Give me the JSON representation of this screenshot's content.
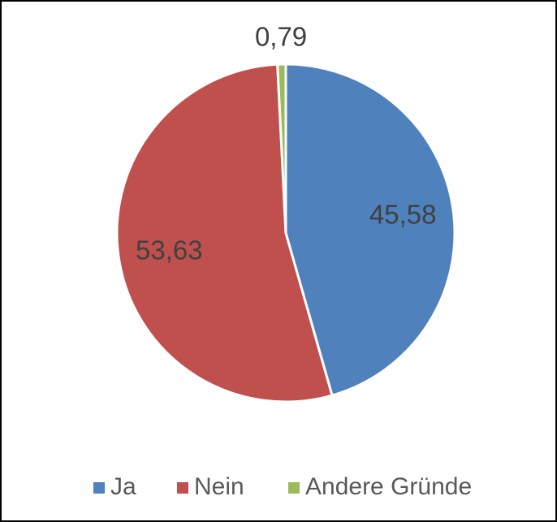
{
  "chart_data": {
    "type": "pie",
    "categories": [
      "Ja",
      "Nein",
      "Andere Gründe"
    ],
    "values": [
      45.58,
      53.63,
      0.79
    ],
    "value_labels": [
      "45,58",
      "53,63",
      "0,79"
    ],
    "colors": [
      "#4f81bd",
      "#c0504d",
      "#9bbb59"
    ],
    "legend": "bottom"
  }
}
